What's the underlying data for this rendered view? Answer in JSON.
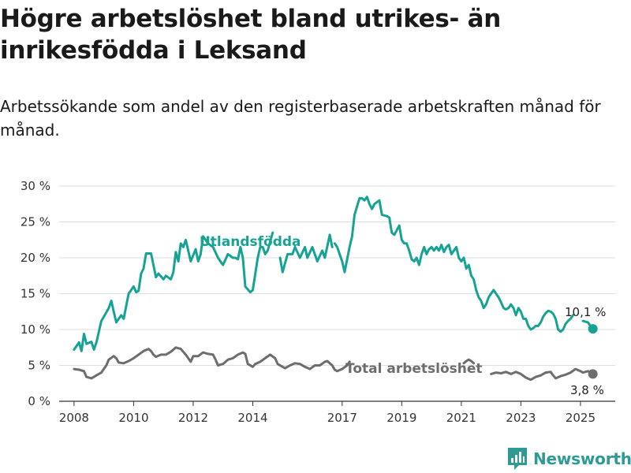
{
  "title": "Högre arbetslöshet bland utrikes- än inrikesfödda i Leksand",
  "subtitle": "Arbetssökande som andel av den registerbaserade arbetskraften månad för månad.",
  "brand": {
    "name": "Newsworthy",
    "icon": "newsworthy-logo-icon",
    "color": "#2e9a94"
  },
  "chart_data": {
    "type": "line",
    "x_ticks": [
      "2008",
      "2010",
      "2012",
      "2014",
      "2017",
      "2019",
      "2021",
      "2023",
      "2025"
    ],
    "y_ticks": [
      "0 %",
      "5 %",
      "10 %",
      "15 %",
      "20 %",
      "25 %",
      "30 %"
    ],
    "ylim": [
      0,
      30
    ],
    "xlim": [
      "2007-07",
      "2026-03"
    ],
    "grid": true,
    "series": [
      {
        "name": "Utlandsfödda",
        "color": "#16a394",
        "end_label": "10,1 %",
        "points": [
          [
            "2008-01",
            7.2
          ],
          [
            "2008-03",
            8.2
          ],
          [
            "2008-04",
            7.0
          ],
          [
            "2008-05",
            9.4
          ],
          [
            "2008-06",
            8.0
          ],
          [
            "2008-08",
            8.3
          ],
          [
            "2008-09",
            7.2
          ],
          [
            "2008-10",
            8.2
          ],
          [
            "2008-12",
            11.2
          ],
          [
            "2009-01",
            11.8
          ],
          [
            "2009-03",
            13.0
          ],
          [
            "2009-04",
            14.0
          ],
          [
            "2009-05",
            12.5
          ],
          [
            "2009-06",
            11.0
          ],
          [
            "2009-08",
            12.0
          ],
          [
            "2009-09",
            11.5
          ],
          [
            "2009-11",
            15.0
          ],
          [
            "2010-01",
            16.0
          ],
          [
            "2010-02",
            15.2
          ],
          [
            "2010-03",
            15.4
          ],
          [
            "2010-04",
            17.8
          ],
          [
            "2010-05",
            18.5
          ],
          [
            "2010-06",
            20.6
          ],
          [
            "2010-08",
            20.6
          ],
          [
            "2010-10",
            17.3
          ],
          [
            "2010-11",
            17.8
          ],
          [
            "2011-01",
            17.0
          ],
          [
            "2011-02",
            17.5
          ],
          [
            "2011-04",
            17.0
          ],
          [
            "2011-05",
            18.0
          ],
          [
            "2011-06",
            20.8
          ],
          [
            "2011-07",
            19.5
          ],
          [
            "2011-08",
            22.0
          ],
          [
            "2011-09",
            21.5
          ],
          [
            "2011-10",
            22.5
          ],
          [
            "2011-12",
            19.5
          ],
          [
            "2012-02",
            21.2
          ],
          [
            "2012-03",
            19.5
          ],
          [
            "2012-04",
            20.5
          ],
          [
            "2012-05",
            23.0
          ],
          [
            "2012-07",
            22.0
          ],
          [
            "2012-09",
            21.5
          ],
          [
            "2012-11",
            20.0
          ],
          [
            "2013-01",
            19.0
          ],
          [
            "2013-03",
            20.5
          ],
          [
            "2013-05",
            20.0
          ],
          [
            "2013-06",
            20.0
          ],
          [
            "2013-07",
            19.8
          ],
          [
            "2013-08",
            21.5
          ],
          [
            "2013-09",
            20.0
          ],
          [
            "2013-10",
            16.0
          ],
          [
            "2013-12",
            15.2
          ],
          [
            "2014-01",
            15.5
          ],
          [
            "2014-03",
            20.0
          ],
          [
            "2014-04",
            21.5
          ],
          [
            "2014-05",
            21.5
          ],
          [
            "2014-06",
            20.5
          ],
          [
            "2014-07",
            21.0
          ],
          [
            "2014-09",
            23.5
          ]
        ],
        "points_2": [
          [
            "2014-12",
            20.0
          ],
          [
            "2015-01",
            18.0
          ],
          [
            "2015-03",
            20.5
          ],
          [
            "2015-05",
            20.5
          ],
          [
            "2015-06",
            21.5
          ],
          [
            "2015-08",
            20.0
          ],
          [
            "2015-10",
            21.5
          ],
          [
            "2015-11",
            20.0
          ],
          [
            "2016-01",
            21.5
          ],
          [
            "2016-03",
            19.5
          ],
          [
            "2016-05",
            21.0
          ],
          [
            "2016-06",
            20.0
          ],
          [
            "2016-08",
            23.2
          ],
          [
            "2016-09",
            21.5
          ]
        ],
        "points_3": [
          [
            "2016-10",
            22.0
          ],
          [
            "2016-11",
            21.5
          ],
          [
            "2016-12",
            20.5
          ],
          [
            "2017-01",
            19.5
          ],
          [
            "2017-02",
            18.0
          ],
          [
            "2017-04",
            21.5
          ],
          [
            "2017-05",
            23.0
          ],
          [
            "2017-06",
            26.0
          ],
          [
            "2017-08",
            28.3
          ],
          [
            "2017-09",
            28.3
          ],
          [
            "2017-10",
            28.0
          ],
          [
            "2017-11",
            28.5
          ],
          [
            "2017-12",
            27.5
          ],
          [
            "2018-01",
            26.8
          ],
          [
            "2018-02",
            27.5
          ],
          [
            "2018-04",
            28.0
          ],
          [
            "2018-05",
            26.0
          ],
          [
            "2018-07",
            25.8
          ],
          [
            "2018-08",
            25.6
          ],
          [
            "2018-09",
            23.5
          ],
          [
            "2018-10",
            23.2
          ],
          [
            "2018-12",
            24.5
          ],
          [
            "2019-01",
            22.5
          ],
          [
            "2019-02",
            22.0
          ],
          [
            "2019-03",
            22.0
          ],
          [
            "2019-04",
            21.0
          ],
          [
            "2019-05",
            19.8
          ],
          [
            "2019-06",
            19.5
          ],
          [
            "2019-07",
            20.0
          ],
          [
            "2019-08",
            19.0
          ],
          [
            "2019-09",
            20.5
          ],
          [
            "2019-10",
            21.5
          ],
          [
            "2019-11",
            20.5
          ],
          [
            "2019-12",
            21.2
          ],
          [
            "2020-01",
            21.5
          ],
          [
            "2020-02",
            21.0
          ],
          [
            "2020-03",
            21.5
          ],
          [
            "2020-04",
            21.0
          ],
          [
            "2020-05",
            21.8
          ],
          [
            "2020-06",
            20.8
          ],
          [
            "2020-07",
            21.5
          ],
          [
            "2020-08",
            21.8
          ],
          [
            "2020-09",
            20.5
          ],
          [
            "2020-10",
            21.0
          ],
          [
            "2020-11",
            21.5
          ],
          [
            "2020-12",
            20.0
          ],
          [
            "2021-01",
            19.5
          ],
          [
            "2021-02",
            20.0
          ],
          [
            "2021-03",
            18.5
          ],
          [
            "2021-04",
            19.0
          ],
          [
            "2021-05",
            17.5
          ],
          [
            "2021-06",
            17.0
          ],
          [
            "2021-07",
            15.5
          ],
          [
            "2021-08",
            14.5
          ],
          [
            "2021-09",
            14.0
          ],
          [
            "2021-10",
            13.0
          ],
          [
            "2021-11",
            13.5
          ],
          [
            "2021-12",
            14.5
          ],
          [
            "2022-01",
            15.0
          ],
          [
            "2022-02",
            15.5
          ],
          [
            "2022-03",
            15.0
          ],
          [
            "2022-04",
            14.5
          ],
          [
            "2022-05",
            13.8
          ],
          [
            "2022-06",
            13.0
          ],
          [
            "2022-07",
            12.8
          ],
          [
            "2022-08",
            13.0
          ],
          [
            "2022-09",
            13.5
          ],
          [
            "2022-10",
            13.0
          ],
          [
            "2022-11",
            12.0
          ],
          [
            "2022-12",
            13.0
          ],
          [
            "2023-01",
            12.5
          ],
          [
            "2023-02",
            11.5
          ],
          [
            "2023-03",
            11.5
          ],
          [
            "2023-04",
            10.5
          ],
          [
            "2023-05",
            10.0
          ],
          [
            "2023-06",
            10.2
          ],
          [
            "2023-07",
            10.5
          ],
          [
            "2023-08",
            10.5
          ],
          [
            "2023-09",
            11.0
          ],
          [
            "2023-10",
            11.8
          ],
          [
            "2023-11",
            12.3
          ],
          [
            "2023-12",
            12.6
          ],
          [
            "2024-01",
            12.5
          ],
          [
            "2024-02",
            12.2
          ],
          [
            "2024-03",
            11.5
          ],
          [
            "2024-04",
            10.0
          ],
          [
            "2024-05",
            9.7
          ],
          [
            "2024-06",
            10.0
          ],
          [
            "2024-07",
            10.8
          ],
          [
            "2024-08",
            11.2
          ],
          [
            "2024-09",
            11.5
          ],
          [
            "2024-10",
            12.0
          ]
        ],
        "points_4": [
          [
            "2025-02",
            11.2
          ],
          [
            "2025-04",
            11.0
          ],
          [
            "2025-05",
            10.5
          ],
          [
            "2025-06",
            10.1
          ]
        ]
      },
      {
        "name": "Total arbetslöshet",
        "color": "#6d6d6d",
        "end_label": "3,8 %",
        "points": [
          [
            "2008-01",
            4.5
          ],
          [
            "2008-03",
            4.4
          ],
          [
            "2008-05",
            4.2
          ],
          [
            "2008-06",
            3.4
          ],
          [
            "2008-08",
            3.2
          ],
          [
            "2008-10",
            3.6
          ],
          [
            "2008-12",
            4.0
          ],
          [
            "2009-02",
            5.0
          ],
          [
            "2009-03",
            5.8
          ],
          [
            "2009-05",
            6.3
          ],
          [
            "2009-06",
            6.0
          ],
          [
            "2009-07",
            5.4
          ],
          [
            "2009-09",
            5.3
          ],
          [
            "2009-11",
            5.6
          ],
          [
            "2010-01",
            6.0
          ],
          [
            "2010-03",
            6.5
          ],
          [
            "2010-05",
            7.0
          ],
          [
            "2010-07",
            7.3
          ],
          [
            "2010-08",
            7.0
          ],
          [
            "2010-09",
            6.5
          ],
          [
            "2010-10",
            6.2
          ],
          [
            "2010-12",
            6.5
          ],
          [
            "2011-02",
            6.5
          ],
          [
            "2011-04",
            6.9
          ],
          [
            "2011-06",
            7.5
          ],
          [
            "2011-08",
            7.3
          ],
          [
            "2011-10",
            6.5
          ],
          [
            "2011-12",
            5.5
          ],
          [
            "2012-01",
            6.3
          ],
          [
            "2012-03",
            6.3
          ],
          [
            "2012-05",
            6.8
          ],
          [
            "2012-07",
            6.6
          ],
          [
            "2012-09",
            6.5
          ],
          [
            "2012-10",
            5.8
          ],
          [
            "2012-11",
            5.0
          ],
          [
            "2013-01",
            5.2
          ],
          [
            "2013-03",
            5.8
          ],
          [
            "2013-05",
            6.0
          ],
          [
            "2013-07",
            6.5
          ],
          [
            "2013-09",
            6.8
          ],
          [
            "2013-10",
            6.6
          ],
          [
            "2013-11",
            5.2
          ],
          [
            "2014-01",
            4.8
          ],
          [
            "2014-02",
            5.2
          ],
          [
            "2014-04",
            5.5
          ],
          [
            "2014-06",
            6.0
          ],
          [
            "2014-08",
            6.5
          ],
          [
            "2014-10",
            6.0
          ],
          [
            "2014-11",
            5.2
          ],
          [
            "2015-01",
            4.8
          ],
          [
            "2015-02",
            4.6
          ],
          [
            "2015-04",
            5.0
          ],
          [
            "2015-06",
            5.3
          ],
          [
            "2015-08",
            5.2
          ],
          [
            "2015-10",
            4.8
          ],
          [
            "2015-12",
            4.5
          ],
          [
            "2016-02",
            5.0
          ],
          [
            "2016-04",
            5.0
          ],
          [
            "2016-06",
            5.5
          ],
          [
            "2016-07",
            5.6
          ],
          [
            "2016-09",
            5.0
          ],
          [
            "2016-10",
            4.4
          ],
          [
            "2016-11",
            4.2
          ],
          [
            "2017-01",
            4.5
          ],
          [
            "2017-03",
            5.0
          ],
          [
            "2017-04",
            5.5
          ]
        ],
        "points_2": [
          [
            "2021-02",
            5.3
          ],
          [
            "2021-03",
            5.6
          ],
          [
            "2021-04",
            5.8
          ],
          [
            "2021-05",
            5.6
          ],
          [
            "2021-06",
            5.3
          ]
        ],
        "points_3": [
          [
            "2022-01",
            3.8
          ],
          [
            "2022-03",
            4.0
          ],
          [
            "2022-05",
            3.9
          ],
          [
            "2022-07",
            4.1
          ],
          [
            "2022-09",
            3.8
          ],
          [
            "2022-11",
            4.1
          ],
          [
            "2023-01",
            3.8
          ],
          [
            "2023-03",
            3.3
          ],
          [
            "2023-05",
            3.0
          ],
          [
            "2023-07",
            3.4
          ],
          [
            "2023-09",
            3.6
          ],
          [
            "2023-11",
            4.0
          ],
          [
            "2024-01",
            4.1
          ],
          [
            "2024-02",
            3.6
          ],
          [
            "2024-03",
            3.2
          ],
          [
            "2024-05",
            3.5
          ],
          [
            "2024-07",
            3.7
          ],
          [
            "2024-09",
            4.0
          ],
          [
            "2024-11",
            4.5
          ],
          [
            "2025-01",
            4.2
          ],
          [
            "2025-02",
            4.0
          ],
          [
            "2025-04",
            4.2
          ],
          [
            "2025-06",
            3.8
          ]
        ]
      }
    ],
    "annotations": [
      {
        "text": "Utlandsfödda",
        "series": 0
      },
      {
        "text": "Total arbetslöshet",
        "series": 1
      }
    ]
  }
}
